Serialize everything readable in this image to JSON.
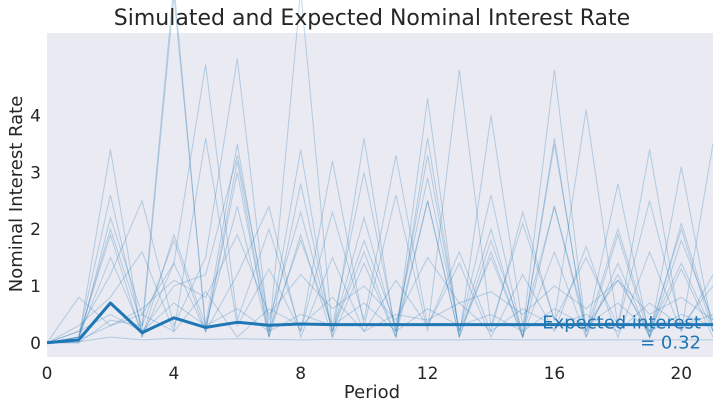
{
  "chart_data": {
    "type": "line",
    "title": "Simulated and Expected Nominal Interest Rate",
    "xlabel": "Period",
    "ylabel": "Nominal Interest Rate",
    "xlim": [
      0,
      21
    ],
    "ylim": [
      -0.25,
      5.45
    ],
    "xticks": [
      0,
      4,
      8,
      12,
      16,
      20
    ],
    "yticks": [
      0,
      1,
      2,
      3,
      4
    ],
    "grid": false,
    "background": "#eaeaf2",
    "series_color": "#1f77b4",
    "x": [
      0,
      1,
      2,
      3,
      4,
      5,
      6,
      7,
      8,
      9,
      10,
      11,
      12,
      13,
      14,
      15,
      16,
      17,
      18,
      19,
      20,
      21
    ],
    "simulated_paths": [
      {
        "values": [
          0,
          0.05,
          3.4,
          0.1,
          1.9,
          0.3,
          3.5,
          0.2,
          3.4,
          0.1,
          3.6,
          0.1,
          3.6,
          0.2,
          2.0,
          0.1,
          3.6,
          0.1,
          1.9,
          0.1,
          3.1,
          0.2
        ]
      },
      {
        "values": [
          0,
          0.1,
          2.6,
          0.2,
          6.1,
          0.3,
          2.4,
          0.1,
          6.2,
          0.2,
          1.6,
          0.1,
          4.3,
          0.1,
          1.8,
          0.2,
          4.8,
          0.2,
          1.2,
          0.1,
          2.1,
          0.3
        ]
      },
      {
        "values": [
          0,
          0.0,
          2.2,
          0.5,
          1.4,
          4.9,
          0.4,
          2.0,
          0.2,
          3.2,
          0.3,
          2.6,
          0.2,
          4.8,
          0.3,
          2.1,
          0.4,
          4.1,
          0.3,
          3.4,
          0.2,
          3.5
        ]
      },
      {
        "values": [
          0,
          0.2,
          1.2,
          2.5,
          0.3,
          1.5,
          5.0,
          0.2,
          1.8,
          0.3,
          3.0,
          0.2,
          2.5,
          0.1,
          4.0,
          0.3,
          2.4,
          0.2,
          2.8,
          0.1,
          1.8,
          0.4
        ]
      },
      {
        "values": [
          0,
          0.1,
          2.0,
          0.3,
          6.3,
          0.2,
          3.0,
          0.1,
          2.8,
          0.2,
          2.2,
          0.2,
          3.3,
          0.2,
          1.5,
          0.1,
          3.5,
          0.2,
          2.0,
          0.2,
          1.4,
          0.2
        ]
      },
      {
        "values": [
          0,
          0.05,
          0.7,
          0.15,
          0.45,
          0.25,
          0.35,
          0.3,
          0.33,
          0.31,
          0.32,
          0.32,
          0.32,
          0.32,
          0.32,
          0.32,
          0.32,
          0.32,
          0.32,
          0.32,
          0.32,
          0.32
        ]
      },
      {
        "values": [
          0,
          0.3,
          0.8,
          1.6,
          0.2,
          3.6,
          0.3,
          1.3,
          0.2,
          2.3,
          0.4,
          3.3,
          0.3,
          1.6,
          0.2,
          2.3,
          0.4,
          1.5,
          0.3,
          2.5,
          0.3,
          1.0
        ]
      },
      {
        "values": [
          0,
          0.1,
          1.5,
          0.2,
          1.0,
          1.2,
          3.3,
          0.4,
          2.3,
          0.2,
          1.8,
          0.3,
          2.9,
          0.2,
          2.6,
          0.1,
          2.4,
          0.3,
          1.1,
          0.2,
          2.0,
          0.2
        ]
      },
      {
        "values": [
          0,
          0.0,
          0.4,
          0.3,
          1.8,
          0.2,
          1.2,
          2.4,
          0.1,
          1.5,
          0.2,
          1.1,
          0.3,
          1.4,
          0.1,
          1.2,
          0.2,
          1.7,
          0.1,
          1.6,
          0.2,
          1.2
        ]
      },
      {
        "values": [
          0,
          0.8,
          0.3,
          0.5,
          0.2,
          0.9,
          0.1,
          0.6,
          0.3,
          0.8,
          0.2,
          0.5,
          0.4,
          0.7,
          0.2,
          0.6,
          0.3,
          0.5,
          0.2,
          0.7,
          0.3,
          0.5
        ]
      },
      {
        "values": [
          0,
          0.1,
          1.9,
          0.1,
          1.4,
          0.2,
          3.2,
          0.1,
          1.9,
          0.1,
          1.4,
          0.1,
          2.5,
          0.1,
          1.6,
          0.1,
          1.6,
          0.1,
          1.4,
          0.1,
          1.3,
          0.1
        ]
      },
      {
        "values": [
          0,
          0.02,
          0.1,
          0.05,
          0.08,
          0.06,
          0.07,
          0.06,
          0.05,
          0.06,
          0.05,
          0.05,
          0.05,
          0.05,
          0.06,
          0.05,
          0.05,
          0.05,
          0.05,
          0.05,
          0.05,
          0.05
        ]
      },
      {
        "values": [
          0,
          0.05,
          0.3,
          0.6,
          1.1,
          0.8,
          1.9,
          0.5,
          1.2,
          0.6,
          1.0,
          0.4,
          1.5,
          0.7,
          0.9,
          0.5,
          1.0,
          0.6,
          1.1,
          0.5,
          0.8,
          0.4
        ]
      },
      {
        "values": [
          0,
          0.2,
          0.5,
          0.2,
          0.7,
          0.3,
          0.6,
          0.2,
          0.5,
          0.3,
          0.7,
          0.2,
          0.6,
          0.3,
          0.5,
          0.2,
          0.6,
          0.3,
          0.7,
          0.2,
          0.5,
          0.3
        ]
      }
    ],
    "expected_series": {
      "values": [
        0,
        0.05,
        0.7,
        0.18,
        0.44,
        0.27,
        0.36,
        0.31,
        0.33,
        0.32,
        0.32,
        0.32,
        0.32,
        0.32,
        0.32,
        0.32,
        0.32,
        0.32,
        0.32,
        0.32,
        0.32,
        0.32
      ]
    },
    "annotation": {
      "line1": "Expected interest",
      "line2": "= 0.32",
      "x": 21,
      "y": 0.32
    }
  }
}
